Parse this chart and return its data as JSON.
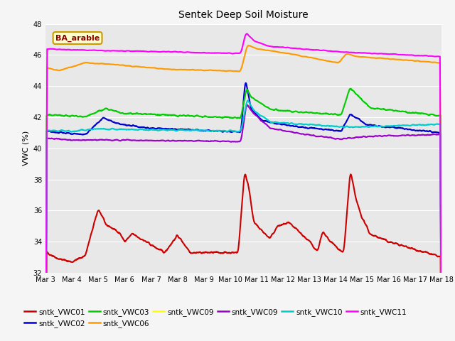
{
  "title": "Sentek Deep Soil Moisture",
  "ylabel": "VWC (%)",
  "ylim": [
    32,
    48
  ],
  "yticks": [
    32,
    34,
    36,
    38,
    40,
    42,
    44,
    46,
    48
  ],
  "plot_bg": "#e8e8e8",
  "fig_bg": "#f5f5f5",
  "annotation_text": "BA_arable",
  "annotation_color": "#8b0000",
  "annotation_bg": "#ffffcc",
  "annotation_border": "#cc9900",
  "num_points": 1440,
  "xtick_labels": [
    "Mar 3",
    "Mar 4",
    "Mar 5",
    "Mar 6",
    "Mar 7",
    "Mar 8",
    "Mar 9",
    "Mar 10",
    "Mar 11",
    "Mar 12",
    "Mar 13",
    "Mar 14",
    "Mar 15",
    "Mar 16",
    "Mar 17",
    "Mar 18"
  ],
  "series": {
    "sntk_VWC01": {
      "color": "#cc0000",
      "lw": 1.5
    },
    "sntk_VWC02": {
      "color": "#0000cc",
      "lw": 1.5
    },
    "sntk_VWC03": {
      "color": "#00cc00",
      "lw": 1.5
    },
    "sntk_VWC06": {
      "color": "#ff9900",
      "lw": 1.5
    },
    "sntk_VWC09_yellow": {
      "color": "#ffff00",
      "lw": 1.5
    },
    "sntk_VWC09_purple": {
      "color": "#9900cc",
      "lw": 1.5
    },
    "sntk_VWC10": {
      "color": "#00cccc",
      "lw": 1.5
    },
    "sntk_VWC11": {
      "color": "#ff00ff",
      "lw": 1.5
    }
  },
  "legend_row1": [
    {
      "label": "sntk_VWC01",
      "color": "#cc0000"
    },
    {
      "label": "sntk_VWC02",
      "color": "#0000cc"
    },
    {
      "label": "sntk_VWC03",
      "color": "#00cc00"
    },
    {
      "label": "sntk_VWC06",
      "color": "#ff9900"
    },
    {
      "label": "sntk_VWC09",
      "color": "#ffff00"
    },
    {
      "label": "sntk_VWC09",
      "color": "#9900cc"
    }
  ],
  "legend_row2": [
    {
      "label": "sntk_VWC10",
      "color": "#00cccc"
    },
    {
      "label": "sntk_VWC11",
      "color": "#ff00ff"
    }
  ]
}
